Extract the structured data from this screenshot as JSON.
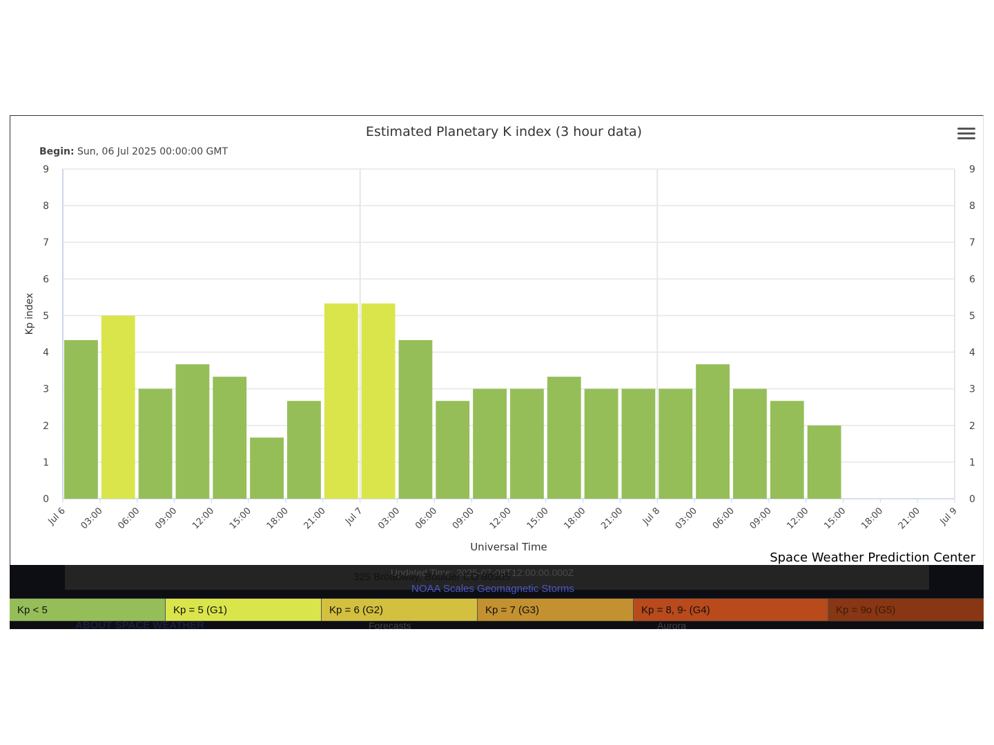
{
  "chart_data": {
    "type": "bar",
    "title": "Estimated Planetary K index (3 hour data)",
    "subtitle_label": "Begin:",
    "subtitle_value": " Sun, 06 Jul 2025 00:00:00 GMT",
    "xlabel": "Universal Time",
    "ylabel": "Kp index",
    "credit": "Space Weather Prediction Center",
    "ylim": [
      0,
      9
    ],
    "y_ticks": [
      "0",
      "1",
      "2",
      "3",
      "4",
      "5",
      "6",
      "7",
      "8",
      "9"
    ],
    "x_ticks": [
      "Jul 6",
      "03:00",
      "06:00",
      "09:00",
      "12:00",
      "15:00",
      "18:00",
      "21:00",
      "Jul 7",
      "03:00",
      "06:00",
      "09:00",
      "12:00",
      "15:00",
      "18:00",
      "21:00",
      "Jul 8",
      "03:00",
      "06:00",
      "09:00",
      "12:00",
      "15:00",
      "18:00",
      "21:00",
      "Jul 9"
    ],
    "x_start": "2025-07-06 00:00",
    "x_end": "2025-07-09 00:00",
    "interval_hours": 3,
    "values": [
      4.33,
      5.0,
      3.0,
      3.67,
      3.33,
      1.67,
      2.67,
      5.33,
      5.33,
      4.33,
      2.67,
      3.0,
      3.0,
      3.33,
      3.0,
      3.0,
      3.0,
      3.67,
      3.0,
      2.67,
      2.0
    ],
    "colors": {
      "kp_lt5": "#95be59",
      "kp_5": "#dae54c",
      "grid": "#e6e6e6",
      "axis": "#ccd6eb",
      "text": "#333333"
    },
    "grid": true
  },
  "legend": [
    {
      "label": "Kp < 5",
      "color": "#95be59"
    },
    {
      "label": "Kp = 5 (G1)",
      "color": "#dae54c"
    },
    {
      "label": "Kp = 6 (G2)",
      "color": "#d3c03f"
    },
    {
      "label": "Kp = 7 (G3)",
      "color": "#c3912f"
    },
    {
      "label": "Kp = 8, 9- (G4)",
      "color": "#b84a1b"
    },
    {
      "label": "Kp = 9o (G5)",
      "color": "#883614"
    }
  ],
  "footer": {
    "updated": "Updated Time: 2025-07-08T12:00:00.000Z",
    "address": "325 Broadway, Boulder CO 80305",
    "noaa_link": "NOAA Scales Geomagnetic Storms",
    "about": "ABOUT SPACE WEATHER",
    "forecasts": "Forecasts",
    "aurora": "Aurora"
  },
  "menu_icon": "hamburger-menu-icon"
}
